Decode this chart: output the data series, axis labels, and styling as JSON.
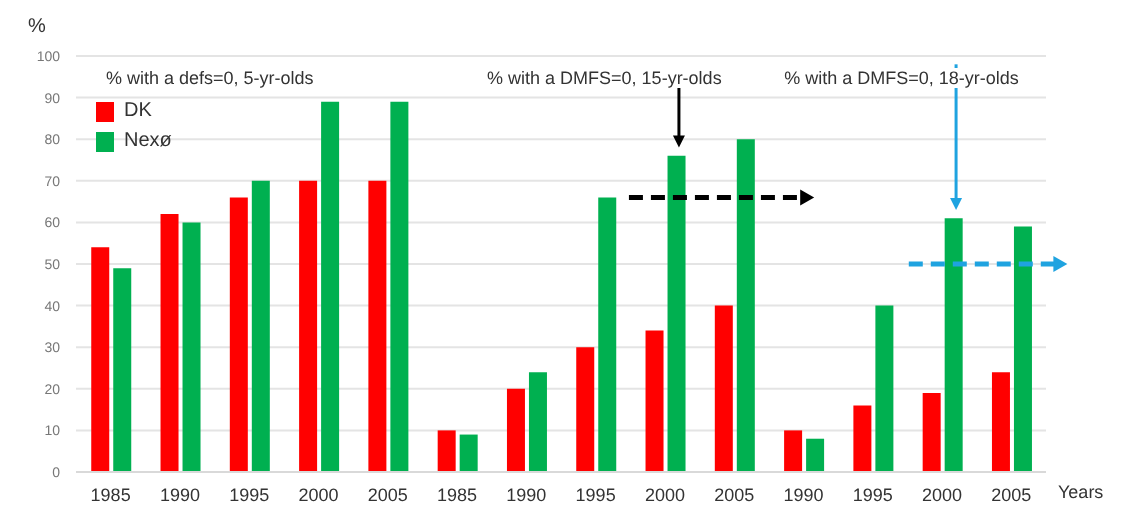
{
  "chart_data": {
    "type": "bar",
    "categories": [
      "1985",
      "1990",
      "1995",
      "2000",
      "2005",
      "1985",
      "1990",
      "1995",
      "2000",
      "2005",
      "1990",
      "1995",
      "2000",
      "2005"
    ],
    "series": [
      {
        "name": "DK",
        "color": "#ff0000",
        "values": [
          54,
          62,
          66,
          70,
          70,
          10,
          20,
          30,
          34,
          40,
          10,
          16,
          19,
          24
        ]
      },
      {
        "name": "Nexø",
        "color": "#00b050",
        "values": [
          49,
          60,
          70,
          89,
          89,
          9,
          24,
          66,
          76,
          80,
          8,
          40,
          61,
          59
        ]
      }
    ],
    "ylabel": "%",
    "xlabel": "Years",
    "annotations": [
      "% with a defs=0, 5-yr-olds",
      "% with a DMFS=0, 15-yr-olds",
      "% with a DMFS=0, 18-yr-olds"
    ],
    "ylim": [
      0,
      100
    ],
    "yticks": [
      0,
      10,
      20,
      30,
      40,
      50,
      60,
      70,
      80,
      90,
      100
    ],
    "grid": "y",
    "legend": "top left"
  }
}
